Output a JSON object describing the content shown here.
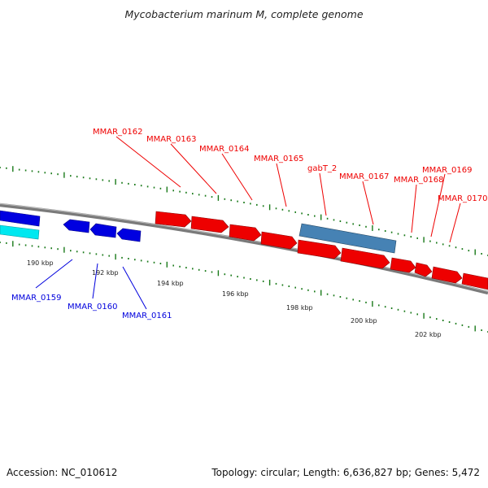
{
  "title": "Mycobacterium marinum M, complete genome",
  "footer": {
    "accession": "Accession: NC_010612",
    "info": "Topology: circular; Length: 6,636,827 bp; Genes: 5,472"
  },
  "colors": {
    "forward_gene": "#ee0000",
    "reverse_gene": "#0000dd",
    "gabT_feature": "#4682b4",
    "cyan_feature": "#00e5ee",
    "backbone": "#777777",
    "tick": "#1a7a1a"
  },
  "scale_labels": [
    "190 kbp",
    "192 kbp",
    "194 kbp",
    "196 kbp",
    "198 kbp",
    "200 kbp",
    "202 kbp"
  ],
  "genes": {
    "reverse": [
      "MMAR_0159",
      "MMAR_0160",
      "MMAR_0161"
    ],
    "forward": [
      "MMAR_0162",
      "MMAR_0163",
      "MMAR_0164",
      "MMAR_0165",
      "gabT_2",
      "MMAR_0167",
      "MMAR_0168",
      "MMAR_0169",
      "MMAR_0170"
    ]
  }
}
